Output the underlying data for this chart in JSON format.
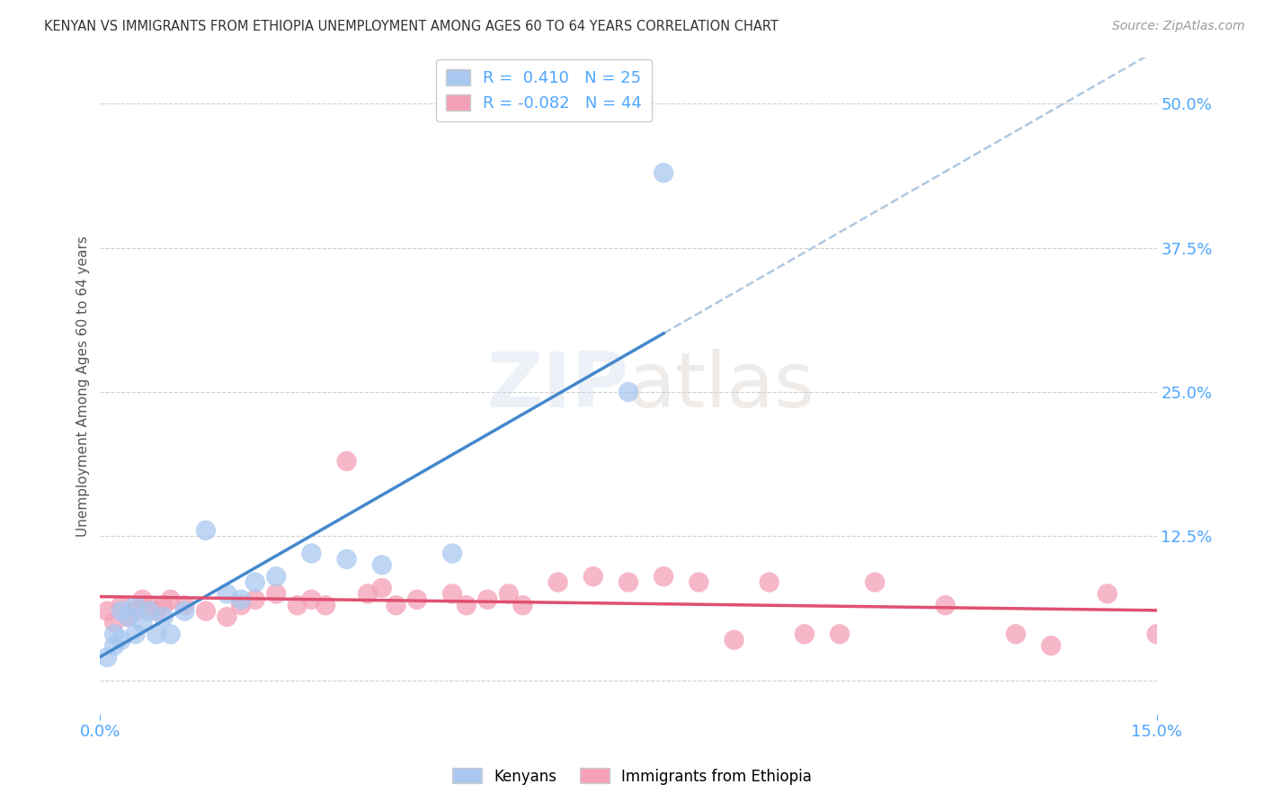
{
  "title": "KENYAN VS IMMIGRANTS FROM ETHIOPIA UNEMPLOYMENT AMONG AGES 60 TO 64 YEARS CORRELATION CHART",
  "source": "Source: ZipAtlas.com",
  "ylabel_label": "Unemployment Among Ages 60 to 64 years",
  "watermark": "ZIPatlas",
  "background_color": "#ffffff",
  "title_color": "#333333",
  "axis_label_color": "#555555",
  "tick_color": "#4da6ff",
  "grid_color": "#d0d0d0",
  "kenyan_scatter_color": "#a8c8f0",
  "kenya_line_color": "#4488cc",
  "ethiopia_scatter_color": "#f4a0b8",
  "ethiopia_line_color": "#e05070",
  "dashed_line_color": "#b0c8e0",
  "kenyan_x": [
    0.001,
    0.002,
    0.002,
    0.003,
    0.003,
    0.004,
    0.005,
    0.005,
    0.006,
    0.007,
    0.008,
    0.009,
    0.01,
    0.012,
    0.015,
    0.018,
    0.02,
    0.022,
    0.025,
    0.03,
    0.035,
    0.04,
    0.05,
    0.075,
    0.08
  ],
  "kenyan_y": [
    0.02,
    0.03,
    0.04,
    0.035,
    0.06,
    0.055,
    0.04,
    0.065,
    0.05,
    0.06,
    0.04,
    0.055,
    0.04,
    0.06,
    0.13,
    0.075,
    0.07,
    0.085,
    0.09,
    0.11,
    0.105,
    0.1,
    0.11,
    0.25,
    0.44
  ],
  "ethiopia_x": [
    0.001,
    0.002,
    0.003,
    0.004,
    0.005,
    0.006,
    0.007,
    0.008,
    0.009,
    0.01,
    0.012,
    0.015,
    0.018,
    0.02,
    0.022,
    0.025,
    0.028,
    0.03,
    0.032,
    0.035,
    0.038,
    0.04,
    0.042,
    0.045,
    0.05,
    0.052,
    0.055,
    0.058,
    0.06,
    0.065,
    0.07,
    0.075,
    0.08,
    0.085,
    0.09,
    0.095,
    0.1,
    0.105,
    0.11,
    0.12,
    0.13,
    0.135,
    0.143,
    0.15
  ],
  "ethiopia_y": [
    0.06,
    0.05,
    0.065,
    0.055,
    0.06,
    0.07,
    0.065,
    0.06,
    0.065,
    0.07,
    0.065,
    0.06,
    0.055,
    0.065,
    0.07,
    0.075,
    0.065,
    0.07,
    0.065,
    0.19,
    0.075,
    0.08,
    0.065,
    0.07,
    0.075,
    0.065,
    0.07,
    0.075,
    0.065,
    0.085,
    0.09,
    0.085,
    0.09,
    0.085,
    0.035,
    0.085,
    0.04,
    0.04,
    0.085,
    0.065,
    0.04,
    0.03,
    0.075,
    0.04
  ],
  "xmin": 0.0,
  "xmax": 0.15,
  "ymin": -0.03,
  "ymax": 0.54,
  "ytick_vals": [
    0.0,
    0.125,
    0.25,
    0.375,
    0.5
  ],
  "ytick_labels": [
    "",
    "12.5%",
    "25.0%",
    "37.5%",
    "50.0%"
  ],
  "xtick_vals": [
    0.0,
    0.15
  ],
  "xtick_labels": [
    "0.0%",
    "15.0%"
  ]
}
